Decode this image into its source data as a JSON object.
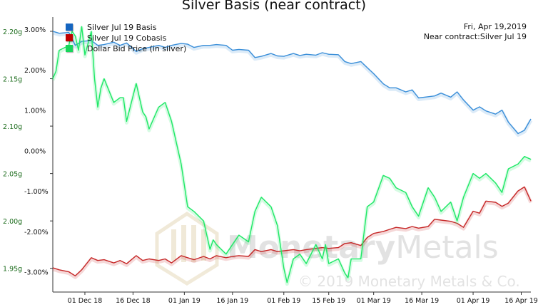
{
  "title": "Silver Basis (near contract)",
  "annotations": {
    "date": "Fri, Apr 19,2019",
    "contract": "Near contract:Silver Jul 19"
  },
  "watermark": {
    "brand": "MonetaryMetals",
    "copyright": "© 2019 Monetary Metals & Co."
  },
  "colors": {
    "basis": "#3b8fd9",
    "cobasis": "#c62828",
    "price": "#1ee866",
    "basis_swatch": "#1565c0",
    "cobasis_swatch": "#c00000",
    "price_swatch": "#16d65a",
    "left_axis": "#1b6b1b",
    "right_axis": "#111111"
  },
  "chart_data": {
    "type": "line",
    "title": "Silver Basis (near contract)",
    "legend_position": "top-left",
    "grid": false,
    "x_ticks": [
      "01 Dec 18",
      "16 Dec 18",
      "01 Jan 19",
      "16 Jan 19",
      "01 Feb 19",
      "15 Feb 19",
      "01 Mar 19",
      "16 Mar 19",
      "01 Apr 19",
      "16 Apr 19"
    ],
    "x_range": [
      "2018-11-21",
      "2019-04-19"
    ],
    "left_axis": {
      "label": "",
      "ticks": [
        "2.20g",
        "2.15g",
        "2.10g",
        "2.05g",
        "2.00g",
        "1.95g"
      ],
      "range": [
        1.925,
        2.215
      ]
    },
    "right_axis": {
      "label": "",
      "ticks": [
        "3.00%",
        "2.00%",
        "1.00%",
        "0.00%",
        "-1.00%",
        "-2.00%",
        "-3.00%"
      ],
      "range": [
        -3.5,
        3.3
      ]
    },
    "series": [
      {
        "name": "Silver Jul 19 Basis",
        "axis": "right",
        "points": [
          [
            "2018-11-21",
            2.95
          ],
          [
            "2018-11-23",
            2.9
          ],
          [
            "2018-11-26",
            2.92
          ],
          [
            "2018-11-28",
            2.6
          ],
          [
            "2018-11-30",
            2.7
          ],
          [
            "2018-12-03",
            2.72
          ],
          [
            "2018-12-05",
            2.6
          ],
          [
            "2018-12-07",
            2.62
          ],
          [
            "2018-12-10",
            2.68
          ],
          [
            "2018-12-12",
            2.6
          ],
          [
            "2018-12-14",
            2.66
          ],
          [
            "2018-12-17",
            2.45
          ],
          [
            "2018-12-19",
            2.52
          ],
          [
            "2018-12-21",
            2.55
          ],
          [
            "2018-12-24",
            2.6
          ],
          [
            "2018-12-26",
            2.55
          ],
          [
            "2018-12-28",
            2.6
          ],
          [
            "2018-12-31",
            2.65
          ],
          [
            "2019-01-02",
            2.63
          ],
          [
            "2019-01-04",
            2.55
          ],
          [
            "2019-01-07",
            2.6
          ],
          [
            "2019-01-09",
            2.6
          ],
          [
            "2019-01-11",
            2.62
          ],
          [
            "2019-01-14",
            2.6
          ],
          [
            "2019-01-16",
            2.48
          ],
          [
            "2019-01-18",
            2.5
          ],
          [
            "2019-01-21",
            2.48
          ],
          [
            "2019-01-23",
            2.3
          ],
          [
            "2019-01-25",
            2.33
          ],
          [
            "2019-01-28",
            2.4
          ],
          [
            "2019-01-30",
            2.34
          ],
          [
            "2019-02-01",
            2.33
          ],
          [
            "2019-02-04",
            2.4
          ],
          [
            "2019-02-06",
            2.35
          ],
          [
            "2019-02-08",
            2.38
          ],
          [
            "2019-02-11",
            2.36
          ],
          [
            "2019-02-13",
            2.42
          ],
          [
            "2019-02-15",
            2.38
          ],
          [
            "2019-02-18",
            2.37
          ],
          [
            "2019-02-20",
            2.2
          ],
          [
            "2019-02-22",
            2.15
          ],
          [
            "2019-02-25",
            2.2
          ],
          [
            "2019-02-27",
            2.05
          ],
          [
            "2019-03-01",
            1.9
          ],
          [
            "2019-03-04",
            1.65
          ],
          [
            "2019-03-06",
            1.55
          ],
          [
            "2019-03-08",
            1.55
          ],
          [
            "2019-03-11",
            1.45
          ],
          [
            "2019-03-13",
            1.5
          ],
          [
            "2019-03-15",
            1.3
          ],
          [
            "2019-03-18",
            1.33
          ],
          [
            "2019-03-20",
            1.35
          ],
          [
            "2019-03-22",
            1.42
          ],
          [
            "2019-03-25",
            1.32
          ],
          [
            "2019-03-27",
            1.45
          ],
          [
            "2019-03-29",
            1.25
          ],
          [
            "2019-04-01",
            1.0
          ],
          [
            "2019-04-03",
            1.08
          ],
          [
            "2019-04-05",
            0.98
          ],
          [
            "2019-04-08",
            0.9
          ],
          [
            "2019-04-10",
            1.0
          ],
          [
            "2019-04-12",
            0.7
          ],
          [
            "2019-04-15",
            0.42
          ],
          [
            "2019-04-17",
            0.5
          ],
          [
            "2019-04-19",
            0.78
          ]
        ]
      },
      {
        "name": "Silver Jul 19 Cobasis",
        "axis": "right",
        "points": [
          [
            "2018-11-21",
            -2.9
          ],
          [
            "2018-11-23",
            -2.95
          ],
          [
            "2018-11-26",
            -3.0
          ],
          [
            "2018-11-28",
            -3.1
          ],
          [
            "2018-11-30",
            -2.95
          ],
          [
            "2018-12-03",
            -2.65
          ],
          [
            "2018-12-05",
            -2.72
          ],
          [
            "2018-12-07",
            -2.7
          ],
          [
            "2018-12-10",
            -2.78
          ],
          [
            "2018-12-12",
            -2.72
          ],
          [
            "2018-12-14",
            -2.8
          ],
          [
            "2018-12-17",
            -2.6
          ],
          [
            "2018-12-19",
            -2.72
          ],
          [
            "2018-12-21",
            -2.68
          ],
          [
            "2018-12-24",
            -2.72
          ],
          [
            "2018-12-26",
            -2.68
          ],
          [
            "2018-12-28",
            -2.78
          ],
          [
            "2018-12-31",
            -2.6
          ],
          [
            "2019-01-02",
            -2.65
          ],
          [
            "2019-01-04",
            -2.7
          ],
          [
            "2019-01-07",
            -2.62
          ],
          [
            "2019-01-09",
            -2.68
          ],
          [
            "2019-01-11",
            -2.6
          ],
          [
            "2019-01-14",
            -2.65
          ],
          [
            "2019-01-16",
            -2.62
          ],
          [
            "2019-01-18",
            -2.6
          ],
          [
            "2019-01-21",
            -2.62
          ],
          [
            "2019-01-23",
            -2.45
          ],
          [
            "2019-01-25",
            -2.5
          ],
          [
            "2019-01-28",
            -2.45
          ],
          [
            "2019-01-30",
            -2.5
          ],
          [
            "2019-02-01",
            -2.48
          ],
          [
            "2019-02-04",
            -2.45
          ],
          [
            "2019-02-06",
            -2.48
          ],
          [
            "2019-02-08",
            -2.45
          ],
          [
            "2019-02-11",
            -2.42
          ],
          [
            "2019-02-13",
            -2.4
          ],
          [
            "2019-02-15",
            -2.42
          ],
          [
            "2019-02-18",
            -2.4
          ],
          [
            "2019-02-20",
            -2.3
          ],
          [
            "2019-02-22",
            -2.28
          ],
          [
            "2019-02-25",
            -2.35
          ],
          [
            "2019-02-27",
            -2.15
          ],
          [
            "2019-03-01",
            -2.05
          ],
          [
            "2019-03-04",
            -2.0
          ],
          [
            "2019-03-06",
            -1.95
          ],
          [
            "2019-03-08",
            -1.9
          ],
          [
            "2019-03-11",
            -1.93
          ],
          [
            "2019-03-13",
            -1.88
          ],
          [
            "2019-03-15",
            -1.92
          ],
          [
            "2019-03-18",
            -1.88
          ],
          [
            "2019-03-20",
            -1.7
          ],
          [
            "2019-03-22",
            -1.72
          ],
          [
            "2019-03-25",
            -1.75
          ],
          [
            "2019-03-27",
            -1.8
          ],
          [
            "2019-03-29",
            -1.9
          ],
          [
            "2019-04-01",
            -1.5
          ],
          [
            "2019-04-03",
            -1.55
          ],
          [
            "2019-04-05",
            -1.25
          ],
          [
            "2019-04-08",
            -1.28
          ],
          [
            "2019-04-10",
            -1.38
          ],
          [
            "2019-04-12",
            -1.3
          ],
          [
            "2019-04-15",
            -1.0
          ],
          [
            "2019-04-17",
            -0.9
          ],
          [
            "2019-04-19",
            -1.25
          ]
        ]
      },
      {
        "name": "Dollar Bid Price (in silver)",
        "axis": "left",
        "points": [
          [
            "2018-11-21",
            2.15
          ],
          [
            "2018-11-22",
            2.158
          ],
          [
            "2018-11-23",
            2.18
          ],
          [
            "2018-11-26",
            2.185
          ],
          [
            "2018-11-27",
            2.2
          ],
          [
            "2018-11-28",
            2.195
          ],
          [
            "2018-11-29",
            2.18
          ],
          [
            "2018-11-30",
            2.205
          ],
          [
            "2018-12-01",
            2.175
          ],
          [
            "2018-12-03",
            2.2
          ],
          [
            "2018-12-04",
            2.15
          ],
          [
            "2018-12-05",
            2.12
          ],
          [
            "2018-12-06",
            2.14
          ],
          [
            "2018-12-07",
            2.15
          ],
          [
            "2018-12-10",
            2.125
          ],
          [
            "2018-12-12",
            2.13
          ],
          [
            "2018-12-13",
            2.13
          ],
          [
            "2018-12-14",
            2.105
          ],
          [
            "2018-12-17",
            2.145
          ],
          [
            "2018-12-19",
            2.115
          ],
          [
            "2018-12-20",
            2.11
          ],
          [
            "2018-12-21",
            2.097
          ],
          [
            "2018-12-24",
            2.12
          ],
          [
            "2018-12-26",
            2.125
          ],
          [
            "2018-12-28",
            2.105
          ],
          [
            "2018-12-31",
            2.06
          ],
          [
            "2019-01-02",
            2.015
          ],
          [
            "2019-01-04",
            2.01
          ],
          [
            "2019-01-07",
            2.0
          ],
          [
            "2019-01-09",
            1.97
          ],
          [
            "2019-01-10",
            1.98
          ],
          [
            "2019-01-11",
            1.975
          ],
          [
            "2019-01-14",
            1.965
          ],
          [
            "2019-01-16",
            1.975
          ],
          [
            "2019-01-18",
            1.985
          ],
          [
            "2019-01-21",
            1.978
          ],
          [
            "2019-01-23",
            2.01
          ],
          [
            "2019-01-25",
            2.025
          ],
          [
            "2019-01-28",
            2.015
          ],
          [
            "2019-01-30",
            1.995
          ],
          [
            "2019-02-01",
            1.95
          ],
          [
            "2019-02-02",
            1.935
          ],
          [
            "2019-02-04",
            1.96
          ],
          [
            "2019-02-06",
            1.965
          ],
          [
            "2019-02-08",
            1.955
          ],
          [
            "2019-02-11",
            1.975
          ],
          [
            "2019-02-13",
            1.96
          ],
          [
            "2019-02-14",
            1.975
          ],
          [
            "2019-02-15",
            1.955
          ],
          [
            "2019-02-18",
            1.96
          ],
          [
            "2019-02-20",
            1.945
          ],
          [
            "2019-02-21",
            1.94
          ],
          [
            "2019-02-22",
            1.96
          ],
          [
            "2019-02-25",
            1.96
          ],
          [
            "2019-02-27",
            2.015
          ],
          [
            "2019-03-01",
            2.02
          ],
          [
            "2019-03-04",
            2.048
          ],
          [
            "2019-03-06",
            2.045
          ],
          [
            "2019-03-08",
            2.035
          ],
          [
            "2019-03-11",
            2.03
          ],
          [
            "2019-03-13",
            2.015
          ],
          [
            "2019-03-15",
            2.005
          ],
          [
            "2019-03-18",
            2.035
          ],
          [
            "2019-03-20",
            2.025
          ],
          [
            "2019-03-22",
            2.01
          ],
          [
            "2019-03-25",
            2.02
          ],
          [
            "2019-03-27",
            2.0
          ],
          [
            "2019-03-29",
            2.025
          ],
          [
            "2019-04-01",
            2.05
          ],
          [
            "2019-04-03",
            2.045
          ],
          [
            "2019-04-05",
            2.05
          ],
          [
            "2019-04-08",
            2.04
          ],
          [
            "2019-04-10",
            2.03
          ],
          [
            "2019-04-12",
            2.055
          ],
          [
            "2019-04-15",
            2.06
          ],
          [
            "2019-04-17",
            2.068
          ],
          [
            "2019-04-19",
            2.065
          ]
        ]
      }
    ]
  }
}
